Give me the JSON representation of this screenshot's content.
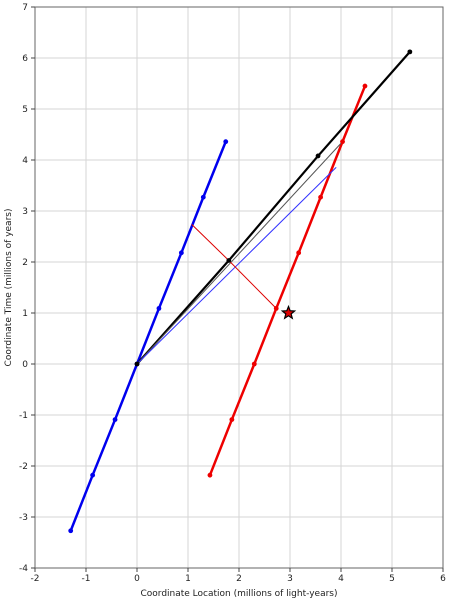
{
  "chart_data": {
    "type": "line",
    "title": "",
    "xlabel": "Coordinate Location (millions of light-years)",
    "ylabel": "Coordinate Time (millions of years)",
    "xlim": [
      -2,
      6
    ],
    "ylim": [
      -4,
      7
    ],
    "x_ticks": [
      -2,
      -1,
      0,
      1,
      2,
      3,
      4,
      5,
      6
    ],
    "y_ticks": [
      -4,
      -3,
      -2,
      -1,
      0,
      1,
      2,
      3,
      4,
      5,
      6,
      7
    ],
    "x_tick_labels": [
      "-2",
      "-1",
      "0",
      "1",
      "2",
      "3",
      "4",
      "5",
      "6"
    ],
    "y_tick_labels": [
      "-4",
      "-3",
      "-2",
      "-1",
      "0",
      "1",
      "2",
      "3",
      "4",
      "5",
      "6",
      "7"
    ],
    "grid": true,
    "legend": "none",
    "series": [
      {
        "color": "#0000ee",
        "width": 2.5,
        "markers": true,
        "points": [
          [
            -1.3,
            -3.27
          ],
          [
            -0.87,
            -2.18
          ],
          [
            -0.43,
            -1.09
          ],
          [
            0,
            0
          ],
          [
            0.43,
            1.09
          ],
          [
            0.87,
            2.18
          ],
          [
            1.3,
            3.27
          ],
          [
            1.74,
            4.36
          ]
        ]
      },
      {
        "color": "#ee0000",
        "width": 2.5,
        "markers": true,
        "points": [
          [
            1.43,
            -2.18
          ],
          [
            1.86,
            -1.09
          ],
          [
            2.3,
            0
          ],
          [
            2.73,
            1.09
          ],
          [
            3.17,
            2.18
          ],
          [
            3.6,
            3.27
          ],
          [
            4.03,
            4.36
          ],
          [
            4.47,
            5.45
          ]
        ]
      },
      {
        "color": "#000000",
        "width": 2.2,
        "markers": true,
        "points": [
          [
            0,
            0
          ],
          [
            1.8,
            2.03
          ],
          [
            3.55,
            4.08
          ],
          [
            5.35,
            6.12
          ]
        ]
      },
      {
        "color": "#555555",
        "width": 1,
        "markers": false,
        "points": [
          [
            0,
            0
          ],
          [
            4.03,
            4.36
          ]
        ]
      },
      {
        "color": "#3333ff",
        "width": 1,
        "markers": false,
        "points": [
          [
            0,
            0
          ],
          [
            3.9,
            3.85
          ]
        ]
      },
      {
        "color": "#dd0000",
        "width": 1,
        "markers": false,
        "points": [
          [
            1.08,
            2.73
          ],
          [
            1.8,
            2.03
          ],
          [
            2.73,
            1.09
          ]
        ]
      }
    ],
    "star": {
      "x": 2.97,
      "y": 1.0,
      "fill": "#dd0000",
      "stroke": "#000000"
    }
  }
}
